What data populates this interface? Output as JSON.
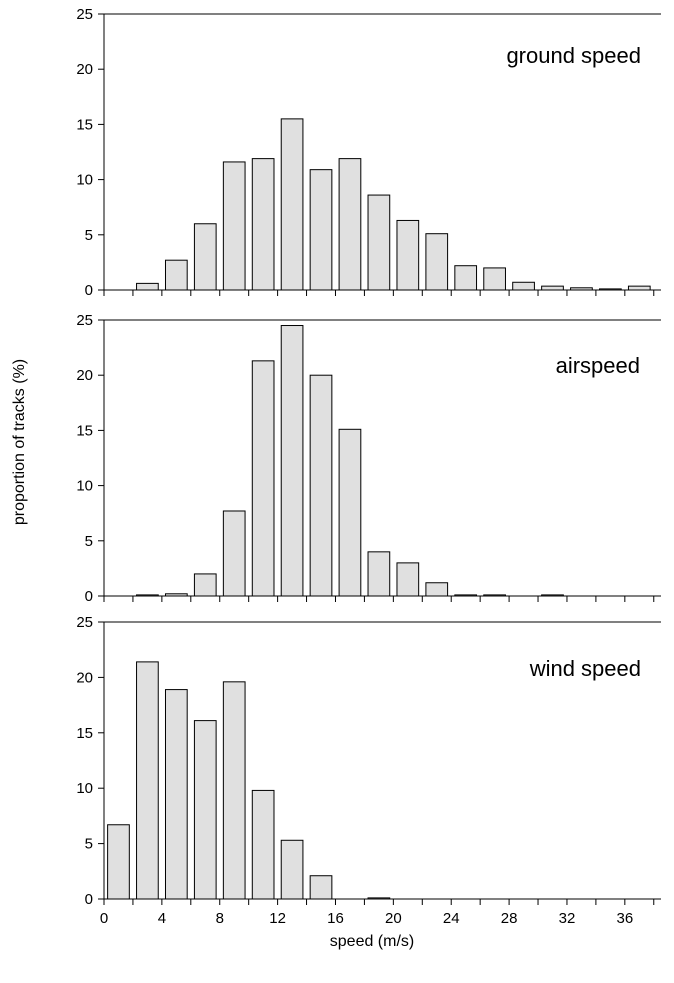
{
  "chart_data": {
    "type": "bar",
    "xlabel": "speed (m/s)",
    "ylabel": "proportion of tracks (%)",
    "x_ticks": [
      "0",
      "4",
      "8",
      "12",
      "16",
      "20",
      "24",
      "28",
      "32",
      "36"
    ],
    "y_ticks": [
      "0",
      "5",
      "10",
      "15",
      "20",
      "25"
    ],
    "xlim": [
      0,
      38.5
    ],
    "ylim": [
      0,
      25
    ],
    "bar_width": 1.5,
    "bar_color": "#e0e0e0",
    "panels": [
      {
        "label": "ground speed",
        "categories": [
          3,
          5,
          7,
          9,
          11,
          13,
          15,
          17,
          19,
          21,
          23,
          25,
          27,
          29,
          31,
          33,
          35,
          37
        ],
        "values": [
          0.6,
          2.7,
          6.0,
          11.6,
          11.9,
          15.5,
          10.9,
          11.9,
          8.6,
          6.3,
          5.1,
          2.2,
          2.0,
          0.7,
          0.35,
          0.2,
          0.1,
          0.35
        ]
      },
      {
        "label": "airspeed",
        "categories": [
          3,
          5,
          7,
          9,
          11,
          13,
          15,
          17,
          19,
          21,
          23,
          25,
          27,
          31
        ],
        "values": [
          0.1,
          0.2,
          2.0,
          7.7,
          21.3,
          24.5,
          20.0,
          15.1,
          4.0,
          3.0,
          1.2,
          0.1,
          0.1,
          0.1
        ]
      },
      {
        "label": "wind speed",
        "categories": [
          1,
          3,
          5,
          7,
          9,
          11,
          13,
          15,
          19
        ],
        "values": [
          6.7,
          21.4,
          18.9,
          16.1,
          19.6,
          9.8,
          5.3,
          2.1,
          0.1
        ]
      }
    ]
  }
}
